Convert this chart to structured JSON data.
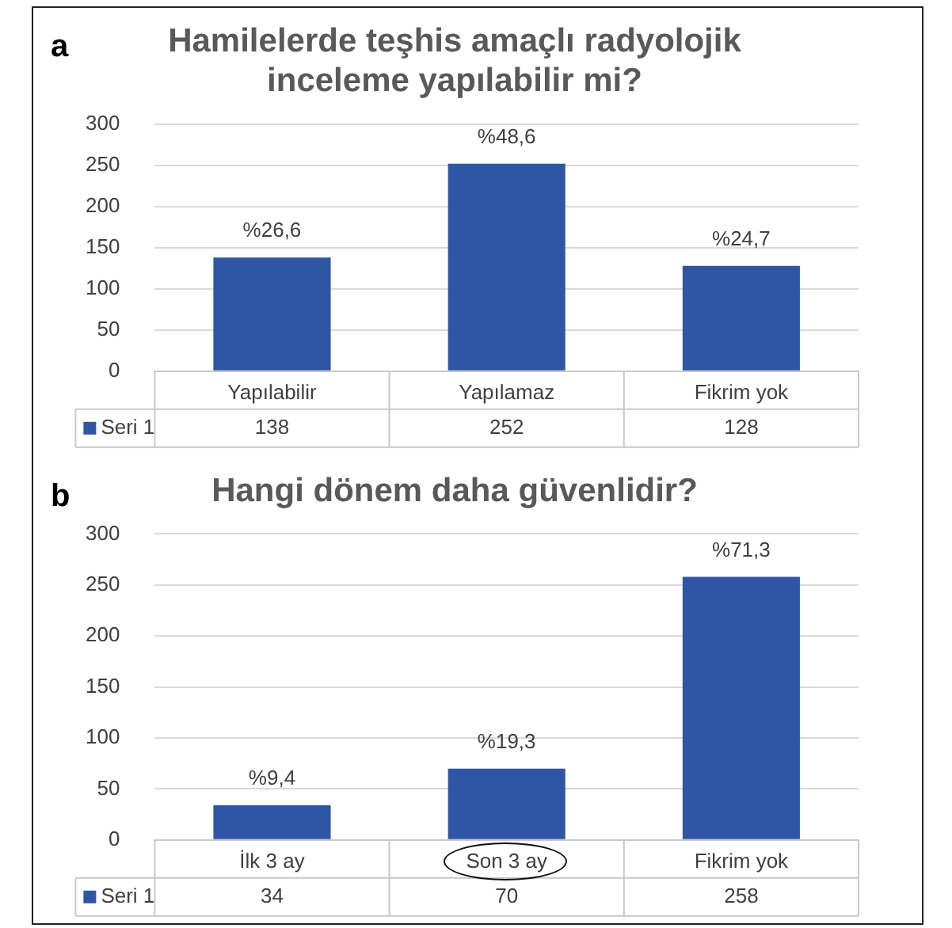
{
  "chart_data": [
    {
      "type": "bar",
      "title": "Hamilelerde teşhis amaçlı radyolojik\ninceleme yapılabilir mi?",
      "categories": [
        "Yapılabilir",
        "Yapılamaz",
        "Fikrim yok"
      ],
      "annotations": [
        "a",
        {
          "text": "%26,6",
          "x": "Yapılabilir",
          "y": 138
        },
        {
          "text": "%48,6",
          "x": "Yapılamaz",
          "y": 252
        },
        {
          "text": "%24,7",
          "x": "Fikrim yok",
          "y": 128
        }
      ],
      "series": [
        {
          "name": "Seri 1",
          "color": "#2f55a5",
          "values": [
            138,
            252,
            128
          ]
        }
      ],
      "data_labels": true,
      "ylim": [
        0,
        300
      ],
      "yticks": [
        0,
        50,
        100,
        150,
        200,
        250,
        300
      ],
      "grid": "y",
      "legend": "bottom"
    },
    {
      "type": "bar",
      "title": "Hangi dönem daha güvenlidir?",
      "categories": [
        "İlk 3 ay",
        "Son 3 ay",
        "Fikrim yok"
      ],
      "annotations": [
        "b",
        {
          "text": "%9,4",
          "x": "İlk 3 ay",
          "y": 34
        },
        {
          "text": "%19,3",
          "x": "Son 3 ay",
          "y": 70
        },
        {
          "text": "%71,3",
          "x": "Fikrim yok",
          "y": 258
        }
      ],
      "series": [
        {
          "name": "Seri 1",
          "color": "#2f55a5",
          "values": [
            34,
            70,
            258
          ]
        }
      ],
      "data_labels": true,
      "ylim": [
        0,
        300
      ],
      "yticks": [
        0,
        50,
        100,
        150,
        200,
        250,
        300
      ],
      "grid": "y",
      "legend": "bottom"
    }
  ]
}
